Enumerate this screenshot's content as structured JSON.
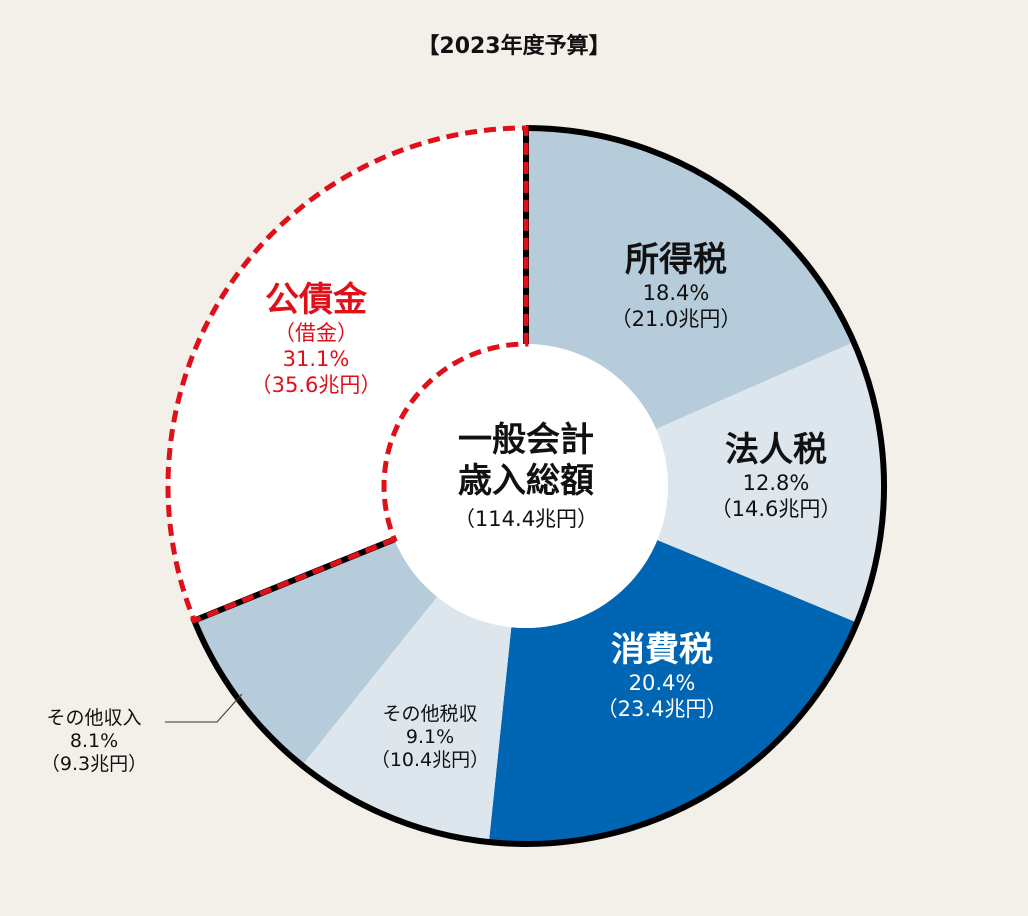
{
  "chart_data": {
    "type": "pie",
    "variant": "donut",
    "title": "【2023年度予算】",
    "center_label": {
      "line1": "一般会計",
      "line2": "歳入総額",
      "total": "（114.4兆円）"
    },
    "slices": [
      {
        "name": "所得税",
        "percent": 18.4,
        "amount": "（21.0兆円）",
        "percent_label": "18.4%",
        "color": "#b7ccdb"
      },
      {
        "name": "法人税",
        "percent": 12.8,
        "amount": "（14.6兆円）",
        "percent_label": "12.8%",
        "color": "#dde5ed"
      },
      {
        "name": "消費税",
        "percent": 20.4,
        "amount": "（23.4兆円）",
        "percent_label": "20.4%",
        "color": "#0066b3"
      },
      {
        "name": "その他税収",
        "percent": 9.1,
        "amount": "（10.4兆円）",
        "percent_label": "9.1%",
        "color": "#dde5ed"
      },
      {
        "name": "その他収入",
        "percent": 8.1,
        "amount": "（9.3兆円）",
        "percent_label": "8.1%",
        "color": "#b7ccdb"
      },
      {
        "name": "公債金",
        "sub": "（借金）",
        "percent": 31.1,
        "amount": "（35.6兆円）",
        "percent_label": "31.1%",
        "color": "#ffffff"
      }
    ],
    "accent_red": "#e0101b"
  }
}
